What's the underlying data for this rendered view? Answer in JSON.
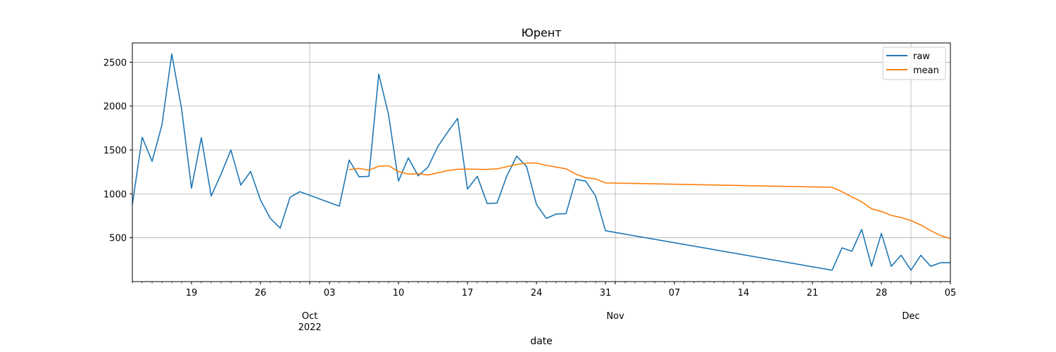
{
  "chart_data": {
    "type": "line",
    "title": "Юрент",
    "xlabel": "date",
    "ylabel": "",
    "x_range": [
      "2022-09-13",
      "2022-12-05"
    ],
    "ylim": [
      0,
      2720
    ],
    "y_ticks": [
      500,
      1000,
      1500,
      2000,
      2500
    ],
    "x_day_ticks": [
      {
        "date": "2022-09-19",
        "label": "19"
      },
      {
        "date": "2022-09-26",
        "label": "26"
      },
      {
        "date": "2022-10-03",
        "label": "03"
      },
      {
        "date": "2022-10-10",
        "label": "10"
      },
      {
        "date": "2022-10-17",
        "label": "17"
      },
      {
        "date": "2022-10-24",
        "label": "24"
      },
      {
        "date": "2022-10-31",
        "label": "31"
      },
      {
        "date": "2022-11-07",
        "label": "07"
      },
      {
        "date": "2022-11-14",
        "label": "14"
      },
      {
        "date": "2022-11-21",
        "label": "21"
      },
      {
        "date": "2022-11-28",
        "label": "28"
      },
      {
        "date": "2022-12-05",
        "label": "05"
      }
    ],
    "x_month_ticks": [
      {
        "date": "2022-10-01",
        "label": "Oct",
        "sublabel": "2022"
      },
      {
        "date": "2022-11-01",
        "label": "Nov",
        "sublabel": ""
      },
      {
        "date": "2022-12-01",
        "label": "Dec",
        "sublabel": ""
      }
    ],
    "grid": true,
    "legend_position": "top-right",
    "series": [
      {
        "name": "raw",
        "color": "#1f77b4",
        "points": [
          [
            "2022-09-13",
            880
          ],
          [
            "2022-09-14",
            1645
          ],
          [
            "2022-09-15",
            1370
          ],
          [
            "2022-09-16",
            1785
          ],
          [
            "2022-09-17",
            2595
          ],
          [
            "2022-09-18",
            1965
          ],
          [
            "2022-09-19",
            1065
          ],
          [
            "2022-09-20",
            1640
          ],
          [
            "2022-09-21",
            975
          ],
          [
            "2022-09-22",
            1225
          ],
          [
            "2022-09-23",
            1500
          ],
          [
            "2022-09-24",
            1100
          ],
          [
            "2022-09-25",
            1255
          ],
          [
            "2022-09-26",
            930
          ],
          [
            "2022-09-27",
            720
          ],
          [
            "2022-09-28",
            610
          ],
          [
            "2022-09-29",
            960
          ],
          [
            "2022-09-30",
            1025
          ],
          [
            "2022-10-04",
            860
          ],
          [
            "2022-10-05",
            1385
          ],
          [
            "2022-10-06",
            1195
          ],
          [
            "2022-10-07",
            1200
          ],
          [
            "2022-10-08",
            2365
          ],
          [
            "2022-10-09",
            1900
          ],
          [
            "2022-10-10",
            1145
          ],
          [
            "2022-10-11",
            1410
          ],
          [
            "2022-10-12",
            1205
          ],
          [
            "2022-10-13",
            1305
          ],
          [
            "2022-10-14",
            1540
          ],
          [
            "2022-10-15",
            1705
          ],
          [
            "2022-10-16",
            1860
          ],
          [
            "2022-10-17",
            1055
          ],
          [
            "2022-10-18",
            1200
          ],
          [
            "2022-10-19",
            890
          ],
          [
            "2022-10-20",
            895
          ],
          [
            "2022-10-21",
            1205
          ],
          [
            "2022-10-22",
            1430
          ],
          [
            "2022-10-23",
            1310
          ],
          [
            "2022-10-24",
            880
          ],
          [
            "2022-10-25",
            720
          ],
          [
            "2022-10-26",
            770
          ],
          [
            "2022-10-27",
            775
          ],
          [
            "2022-10-28",
            1165
          ],
          [
            "2022-10-29",
            1145
          ],
          [
            "2022-10-30",
            975
          ],
          [
            "2022-10-31",
            580
          ],
          [
            "2022-11-23",
            130
          ],
          [
            "2022-11-24",
            385
          ],
          [
            "2022-11-25",
            345
          ],
          [
            "2022-11-26",
            595
          ],
          [
            "2022-11-27",
            175
          ],
          [
            "2022-11-28",
            550
          ],
          [
            "2022-11-29",
            175
          ],
          [
            "2022-11-30",
            300
          ],
          [
            "2022-12-01",
            130
          ],
          [
            "2022-12-02",
            300
          ],
          [
            "2022-12-03",
            175
          ],
          [
            "2022-12-04",
            215
          ],
          [
            "2022-12-05",
            215
          ]
        ]
      },
      {
        "name": "mean",
        "color": "#ff7f0e",
        "points": [
          [
            "2022-10-05",
            1275
          ],
          [
            "2022-10-06",
            1290
          ],
          [
            "2022-10-07",
            1270
          ],
          [
            "2022-10-08",
            1315
          ],
          [
            "2022-10-09",
            1320
          ],
          [
            "2022-10-10",
            1255
          ],
          [
            "2022-10-11",
            1225
          ],
          [
            "2022-10-12",
            1230
          ],
          [
            "2022-10-13",
            1215
          ],
          [
            "2022-10-14",
            1240
          ],
          [
            "2022-10-15",
            1265
          ],
          [
            "2022-10-16",
            1280
          ],
          [
            "2022-10-17",
            1282
          ],
          [
            "2022-10-18",
            1280
          ],
          [
            "2022-10-19",
            1278
          ],
          [
            "2022-10-20",
            1285
          ],
          [
            "2022-10-21",
            1310
          ],
          [
            "2022-10-22",
            1335
          ],
          [
            "2022-10-23",
            1350
          ],
          [
            "2022-10-24",
            1352
          ],
          [
            "2022-10-25",
            1325
          ],
          [
            "2022-10-26",
            1305
          ],
          [
            "2022-10-27",
            1285
          ],
          [
            "2022-10-28",
            1225
          ],
          [
            "2022-10-29",
            1185
          ],
          [
            "2022-10-30",
            1170
          ],
          [
            "2022-10-31",
            1125
          ],
          [
            "2022-11-23",
            1075
          ],
          [
            "2022-11-24",
            1025
          ],
          [
            "2022-11-25",
            965
          ],
          [
            "2022-11-26",
            910
          ],
          [
            "2022-11-27",
            830
          ],
          [
            "2022-11-28",
            800
          ],
          [
            "2022-11-29",
            755
          ],
          [
            "2022-11-30",
            730
          ],
          [
            "2022-12-01",
            695
          ],
          [
            "2022-12-02",
            645
          ],
          [
            "2022-12-03",
            580
          ],
          [
            "2022-12-04",
            525
          ],
          [
            "2022-12-05",
            490
          ]
        ]
      }
    ]
  }
}
